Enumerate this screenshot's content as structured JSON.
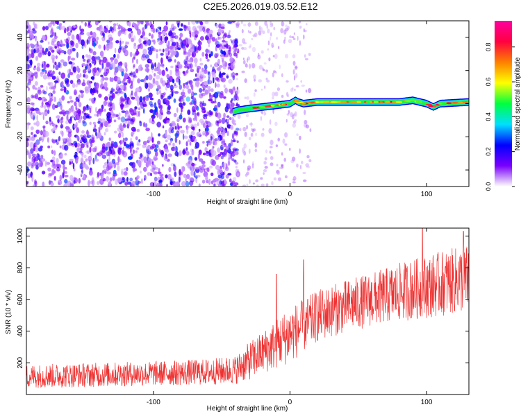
{
  "title": "C2E5.2026.019.03.52.E12",
  "chart_data": [
    {
      "type": "heatmap",
      "name": "spectrogram",
      "xlabel": "Height of straight line (km)",
      "ylabel": "Frequency (Hz)",
      "xlim": [
        -193,
        131
      ],
      "ylim": [
        -50,
        50
      ],
      "xticks": [
        -100,
        0,
        100
      ],
      "xtick_labels": [
        "-100",
        "0",
        "100"
      ],
      "yticks": [
        -40,
        -20,
        0,
        20,
        40
      ],
      "ytick_labels": [
        "-40",
        "-20",
        "0",
        "20",
        "40"
      ],
      "noise_region_x": [
        -193,
        -40
      ],
      "sparse_noise_region_x": [
        -40,
        15
      ],
      "signal_track": {
        "x": [
          -42,
          -38,
          -30,
          -20,
          -10,
          0,
          4,
          6,
          10,
          20,
          40,
          60,
          80,
          90,
          95,
          100,
          105,
          110,
          131
        ],
        "y": [
          -5,
          -4,
          -3,
          -2,
          -1,
          0,
          2,
          1,
          0,
          1,
          1,
          1,
          1,
          2,
          1,
          0,
          -2,
          0,
          1
        ],
        "peak_amplitude_range": [
          0.5,
          0.9
        ]
      },
      "colorbar": {
        "label": "Normalized spectral amplitude",
        "range": [
          0,
          0.95
        ],
        "ticks": [
          0.0,
          0.2,
          0.4,
          0.6,
          0.8
        ],
        "tick_labels": [
          "0.0",
          "0.2",
          "0.4",
          "0.6",
          "0.8"
        ],
        "colormap": [
          "#ffffff",
          "#7a00ff",
          "#0000ff",
          "#00e0ff",
          "#00ff40",
          "#ffff00",
          "#ff8000",
          "#ff0040",
          "#ff00a0"
        ]
      }
    },
    {
      "type": "line",
      "name": "snr",
      "xlabel": "Height of straight line (km)",
      "ylabel": "SNR (10 * v/v)",
      "xlim": [
        -193,
        131
      ],
      "ylim": [
        0,
        1050
      ],
      "xticks": [
        -100,
        0,
        100
      ],
      "xtick_labels": [
        "-100",
        "0",
        "100"
      ],
      "yticks": [
        200,
        400,
        600,
        800,
        1000
      ],
      "ytick_labels": [
        "200",
        "400",
        "600",
        "800",
        "1000"
      ],
      "series": [
        {
          "name": "SNR",
          "color": "#ee3333",
          "trend_x": [
            -193,
            -150,
            -100,
            -60,
            -40,
            -30,
            -20,
            -10,
            0,
            10,
            20,
            40,
            60,
            80,
            100,
            131
          ],
          "trend_low": [
            40,
            45,
            55,
            60,
            65,
            90,
            130,
            160,
            200,
            260,
            330,
            390,
            430,
            460,
            480,
            520
          ],
          "trend_high": [
            190,
            200,
            210,
            225,
            245,
            330,
            400,
            480,
            560,
            600,
            660,
            720,
            770,
            830,
            880,
            950
          ],
          "peaks": [
            [
              -10,
              760
            ],
            [
              10,
              850
            ],
            [
              97,
              1050
            ],
            [
              127,
              1030
            ]
          ]
        }
      ]
    }
  ]
}
